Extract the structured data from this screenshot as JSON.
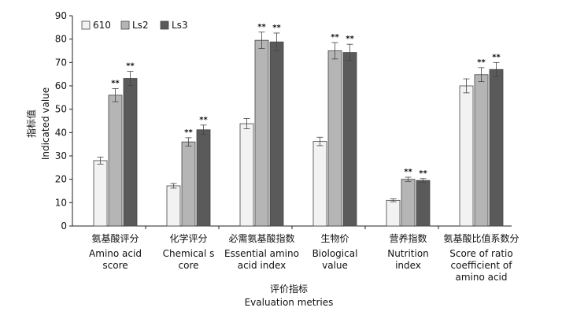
{
  "chart_data": {
    "type": "bar",
    "ylabel_cn": "指标值",
    "ylabel": "Indicated value",
    "xlabel_cn": "评价指标",
    "xlabel": "Evaluation metries",
    "ylim": [
      0,
      90
    ],
    "yticks": [
      0,
      10,
      20,
      30,
      40,
      50,
      60,
      70,
      80,
      90
    ],
    "legend_position": "top-left",
    "categories": [
      {
        "cn": "氨基酸评分",
        "en": [
          "Amino acid",
          "score"
        ]
      },
      {
        "cn": "化学评分",
        "en": [
          "Chemical s",
          "core"
        ]
      },
      {
        "cn": "必需氨基酸指数",
        "en": [
          "Essential amino",
          "acid index"
        ]
      },
      {
        "cn": "生物价",
        "en": [
          "Biological",
          "value"
        ]
      },
      {
        "cn": "营养指数",
        "en": [
          "Nutrition",
          "index"
        ]
      },
      {
        "cn": "氨基酸比值系数分",
        "en": [
          "Score of ratio",
          "coefficient of",
          "amino acid"
        ]
      }
    ],
    "series": [
      {
        "name": "610",
        "color": "#f2f2f2",
        "values": [
          28,
          17.2,
          43.8,
          36.2,
          11,
          60
        ],
        "errors": [
          1.5,
          1.0,
          2.2,
          1.8,
          0.6,
          3.0
        ],
        "significance": [
          "",
          "",
          "",
          "",
          "",
          ""
        ]
      },
      {
        "name": "Ls2",
        "color": "#b5b5b5",
        "values": [
          56,
          36,
          79.5,
          75,
          20,
          64.8
        ],
        "errors": [
          2.8,
          1.8,
          3.5,
          3.5,
          0.9,
          3.0
        ],
        "significance": [
          "**",
          "**",
          "**",
          "**",
          "**",
          "**"
        ]
      },
      {
        "name": "Ls3",
        "color": "#5a5a5a",
        "values": [
          63.2,
          41.2,
          78.8,
          74.3,
          19.5,
          67
        ],
        "errors": [
          3.0,
          2.0,
          3.8,
          3.5,
          0.8,
          3.0
        ],
        "significance": [
          "**",
          "**",
          "**",
          "**",
          "**",
          "**"
        ]
      }
    ]
  }
}
